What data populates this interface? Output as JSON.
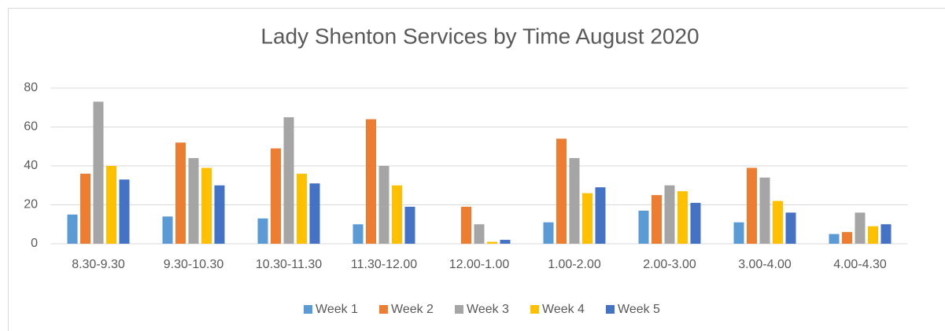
{
  "chart_data": {
    "type": "bar",
    "title": "Lady Shenton Services by Time August 2020",
    "categories": [
      "8.30-9.30",
      "9.30-10.30",
      "10.30-11.30",
      "11.30-12.00",
      "12.00-1.00",
      "1.00-2.00",
      "2.00-3.00",
      "3.00-4.00",
      "4.00-4.30"
    ],
    "series": [
      {
        "name": "Week 1",
        "color": "#5b9bd5",
        "values": [
          15,
          14,
          13,
          10,
          0,
          11,
          17,
          11,
          5
        ]
      },
      {
        "name": "Week 2",
        "color": "#ed7d31",
        "values": [
          36,
          52,
          49,
          64,
          19,
          54,
          25,
          39,
          6
        ]
      },
      {
        "name": "Week 3",
        "color": "#a5a5a5",
        "values": [
          73,
          44,
          65,
          40,
          10,
          44,
          30,
          34,
          16
        ]
      },
      {
        "name": "Week 4",
        "color": "#ffc000",
        "values": [
          40,
          39,
          36,
          30,
          1,
          26,
          27,
          22,
          9
        ]
      },
      {
        "name": "Week 5",
        "color": "#4472c4",
        "values": [
          33,
          30,
          31,
          19,
          2,
          29,
          21,
          16,
          10
        ]
      }
    ],
    "ylim": [
      0,
      80
    ],
    "yticks": [
      0,
      20,
      40,
      60,
      80
    ],
    "grid": true,
    "legend": "bottom"
  }
}
